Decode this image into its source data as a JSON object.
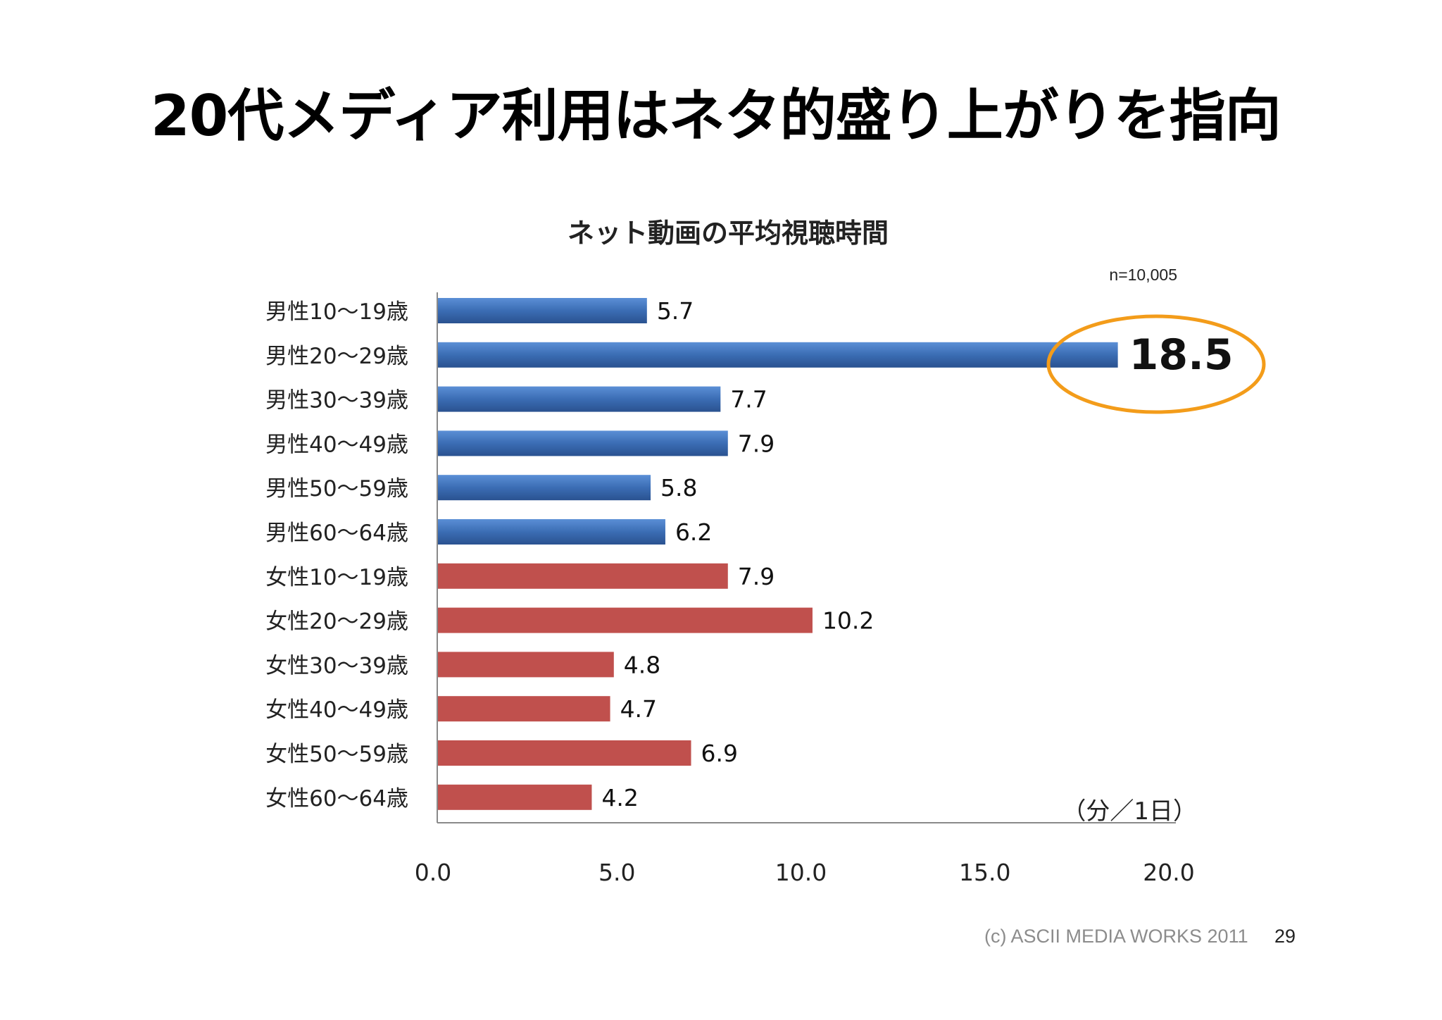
{
  "slide": {
    "title": "20代メディア利用はネタ的盛り上がりを指向",
    "copyright": "(c) ASCII MEDIA WORKS 2011",
    "page_number": "29"
  },
  "chart_data": {
    "type": "bar",
    "orientation": "horizontal",
    "title": "ネット動画の平均視聴時間",
    "sample_size": "n=10,005",
    "unit": "（分／1日）",
    "categories": [
      "男性10～19歳",
      "男性20～29歳",
      "男性30～39歳",
      "男性40～49歳",
      "男性50～59歳",
      "男性60～64歳",
      "女性10～19歳",
      "女性20～29歳",
      "女性30～39歳",
      "女性40～49歳",
      "女性50～59歳",
      "女性60～64歳"
    ],
    "values": [
      5.7,
      18.5,
      7.7,
      7.9,
      5.8,
      6.2,
      7.9,
      10.2,
      4.8,
      4.7,
      6.9,
      4.2
    ],
    "value_labels": [
      "5.7",
      "18.5",
      "7.7",
      "7.9",
      "5.8",
      "6.2",
      "7.9",
      "10.2",
      "4.8",
      "4.7",
      "6.9",
      "4.2"
    ],
    "xlim": [
      0,
      20
    ],
    "xticks": [
      "0.0",
      "5.0",
      "10.0",
      "15.0",
      "20.0"
    ],
    "grid": false,
    "highlight_index": 1,
    "colors": {
      "male": "#3b6db4",
      "female": "#c0504d",
      "highlight_ellipse": "#f39c1a"
    }
  }
}
